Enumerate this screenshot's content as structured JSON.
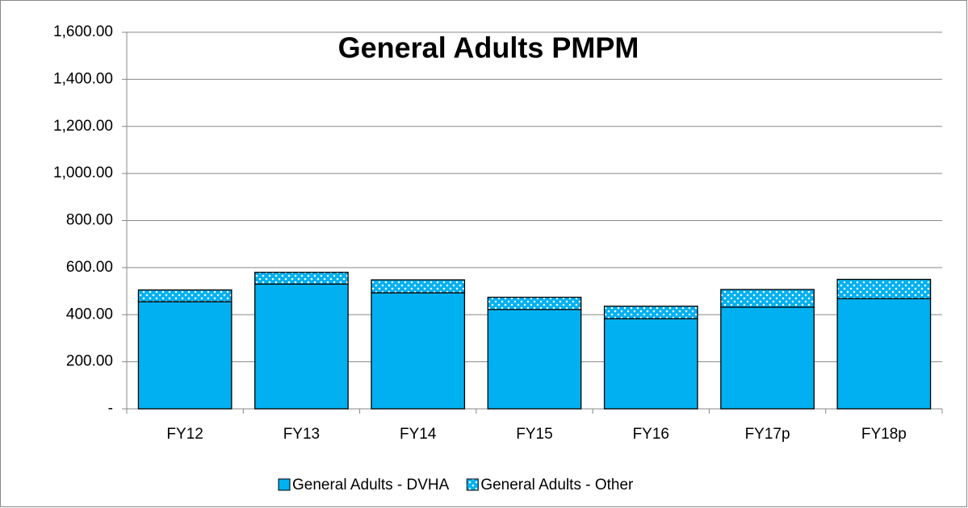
{
  "chart_data": {
    "type": "stacked_bar",
    "title": "General Adults PMPM",
    "categories": [
      "FY12",
      "FY13",
      "FY14",
      "FY15",
      "FY16",
      "FY17p",
      "FY18p"
    ],
    "series": [
      {
        "name": "General Adults - DVHA",
        "color": "#00b0f0",
        "values": [
          455,
          530,
          493,
          422,
          383,
          432,
          468
        ]
      },
      {
        "name": "General Adults - Other",
        "color": "#00b0f0",
        "values": [
          50,
          50,
          55,
          52,
          53,
          75,
          82
        ]
      }
    ],
    "ylim": [
      0,
      1600
    ],
    "yticks": [
      {
        "value": 0,
        "label": "-"
      },
      {
        "value": 200,
        "label": "200.00"
      },
      {
        "value": 400,
        "label": "400.00"
      },
      {
        "value": 600,
        "label": "600.00"
      },
      {
        "value": 800,
        "label": "800.00"
      },
      {
        "value": 1000,
        "label": "1,000.00"
      },
      {
        "value": 1200,
        "label": "1,200.00"
      },
      {
        "value": 1400,
        "label": "1,400.00"
      },
      {
        "value": 1600,
        "label": "1,600.00"
      }
    ],
    "grid": true,
    "legend": "bottom"
  }
}
